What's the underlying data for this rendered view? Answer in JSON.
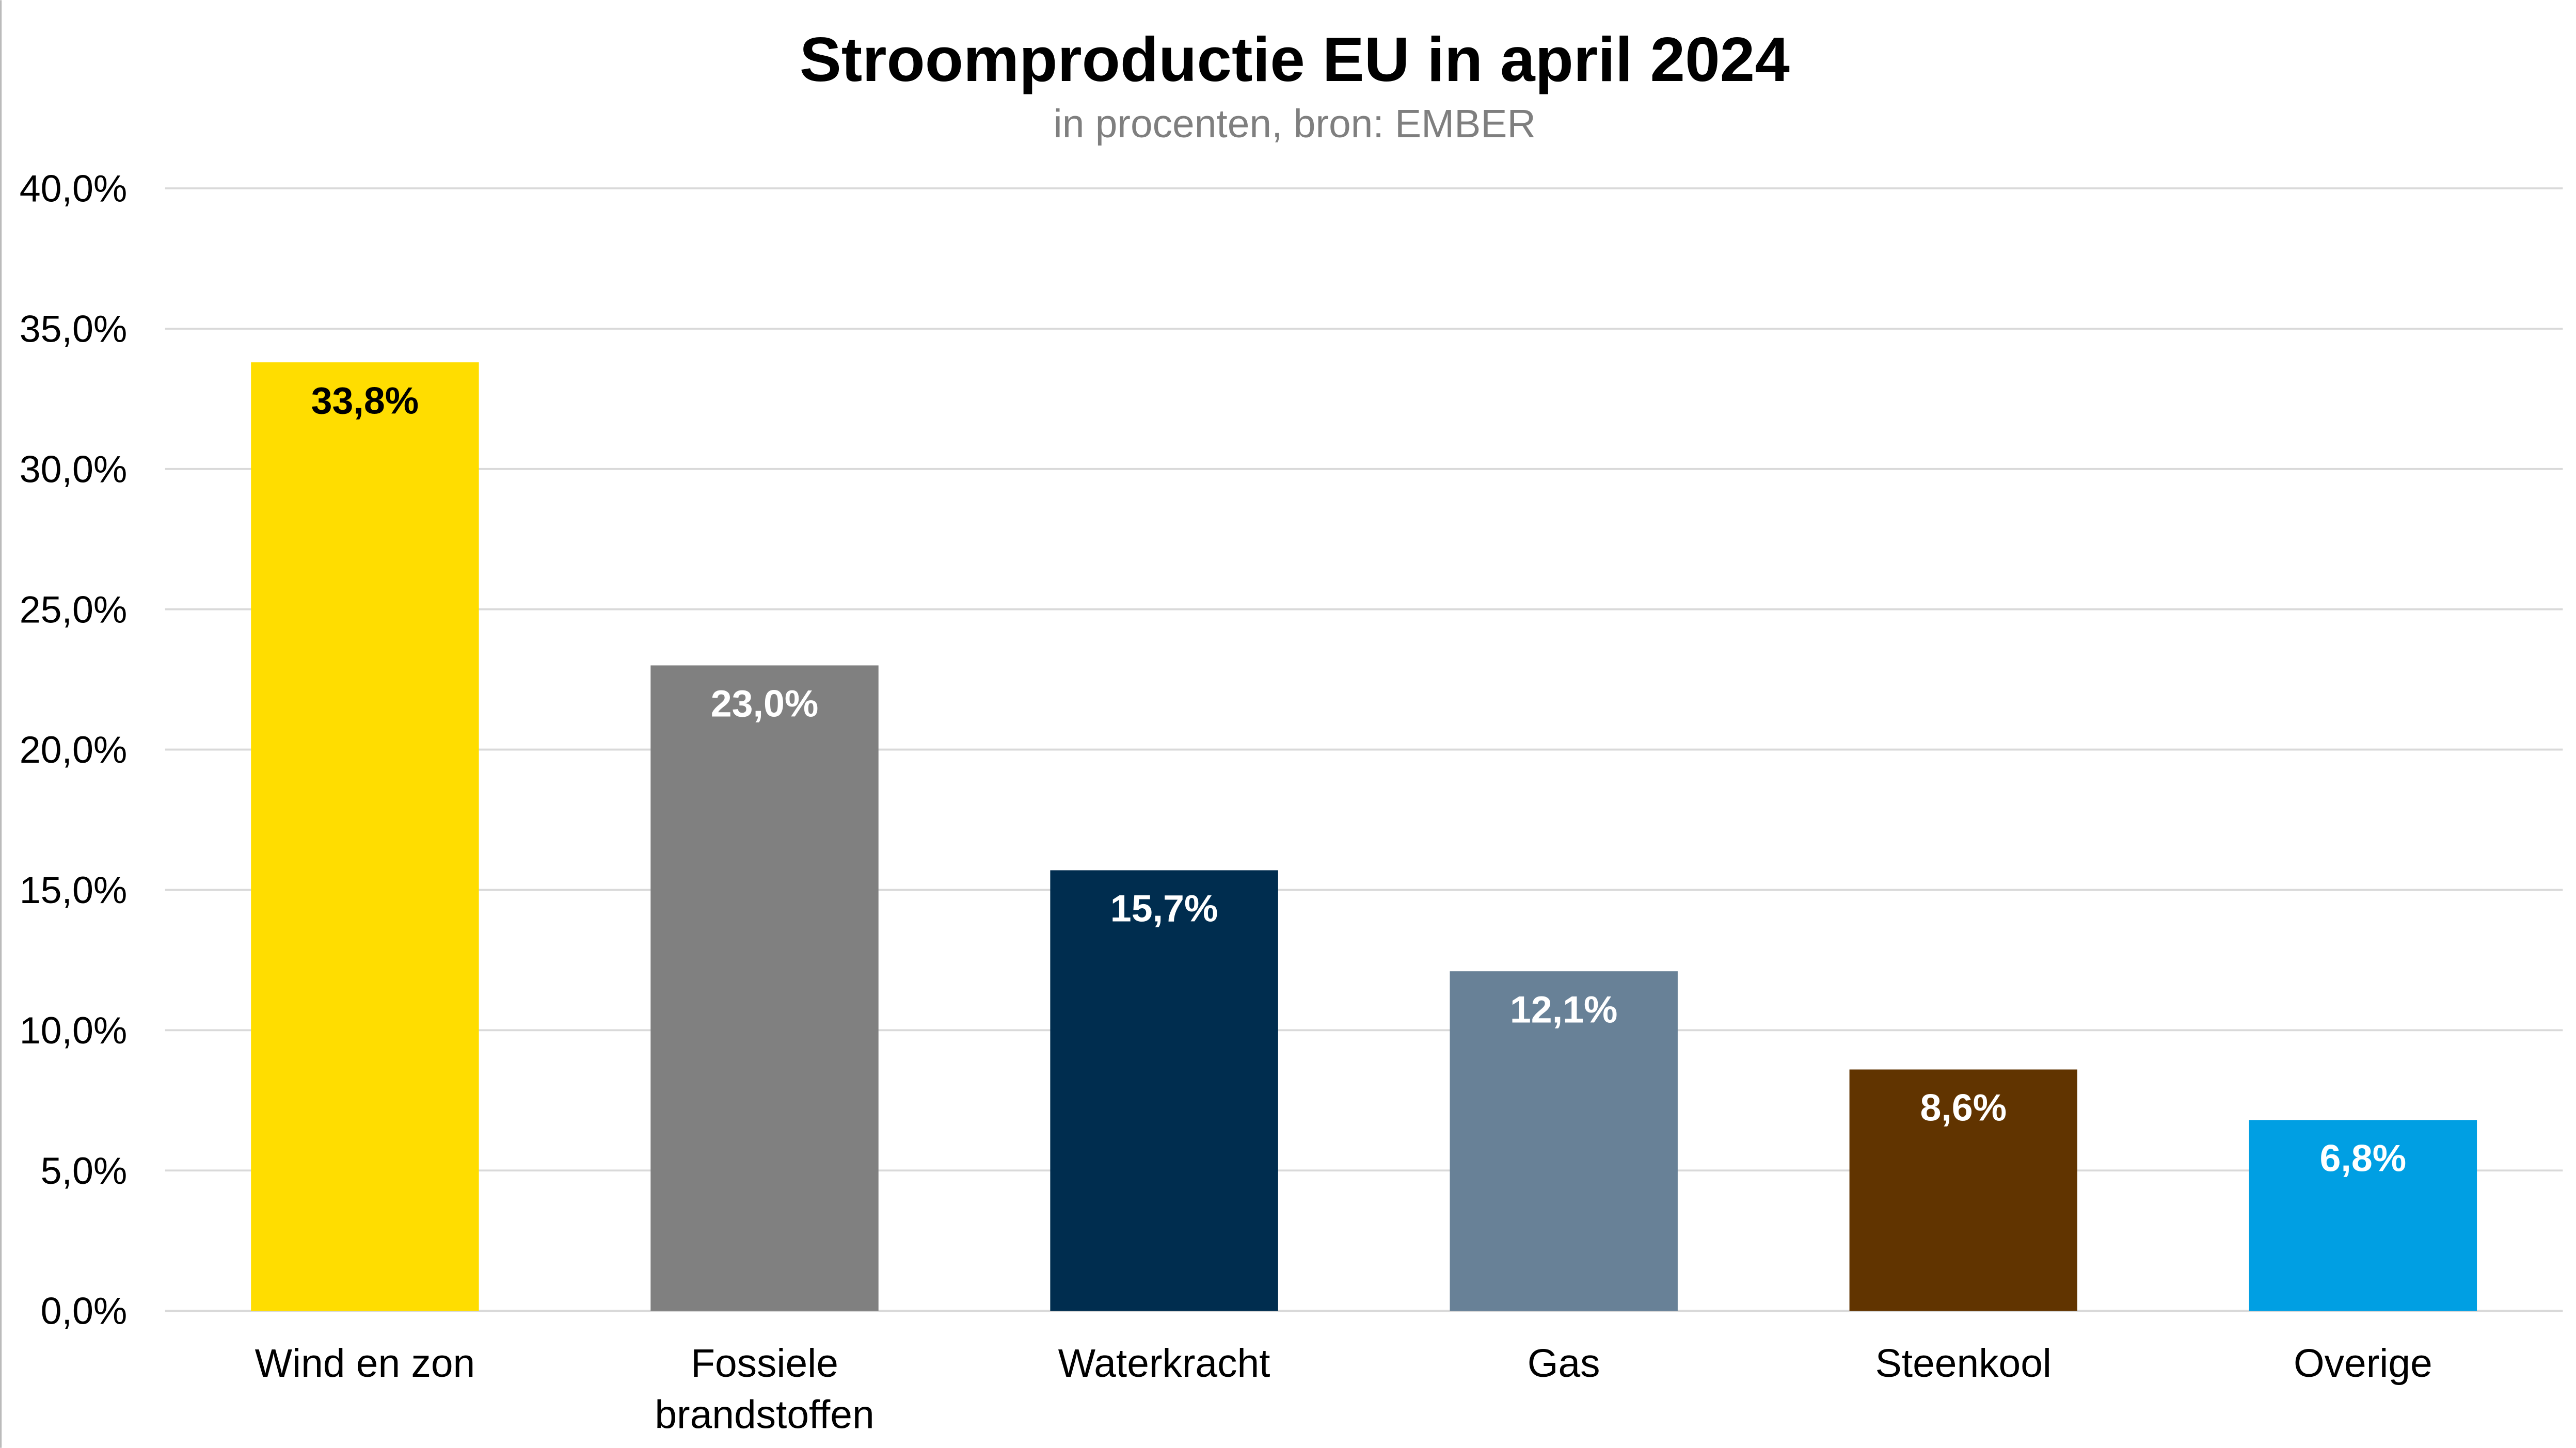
{
  "chart_data": {
    "type": "bar",
    "title": "Stroomproductie EU in april 2024",
    "subtitle": "in procenten, bron: EMBER",
    "xlabel": "",
    "ylabel": "",
    "ylim": [
      0,
      40
    ],
    "grid": true,
    "legend": "none",
    "yticks": [
      0,
      5,
      10,
      15,
      20,
      25,
      30,
      35,
      40
    ],
    "ytick_labels": [
      "0,0%",
      "5,0%",
      "10,0%",
      "15,0%",
      "20,0%",
      "25,0%",
      "30,0%",
      "35,0%",
      "40,0%"
    ],
    "categories": [
      [
        "Wind en zon"
      ],
      [
        "Fossiele",
        "brandstoffen"
      ],
      [
        "Waterkracht"
      ],
      [
        "Gas"
      ],
      [
        "Steenkool"
      ],
      [
        "Overige"
      ]
    ],
    "values": [
      33.8,
      23.0,
      15.7,
      12.1,
      8.6,
      6.8
    ],
    "data_labels": [
      "33,8%",
      "23,0%",
      "15,7%",
      "12,1%",
      "8,6%",
      "6,8%"
    ],
    "colors": [
      "#FFDD00",
      "#808080",
      "#002D4F",
      "#688197",
      "#613400",
      "#009FE3"
    ],
    "label_colors": [
      "#000000",
      "#FFFFFF",
      "#FFFFFF",
      "#FFFFFF",
      "#FFFFFF",
      "#FFFFFF"
    ]
  }
}
